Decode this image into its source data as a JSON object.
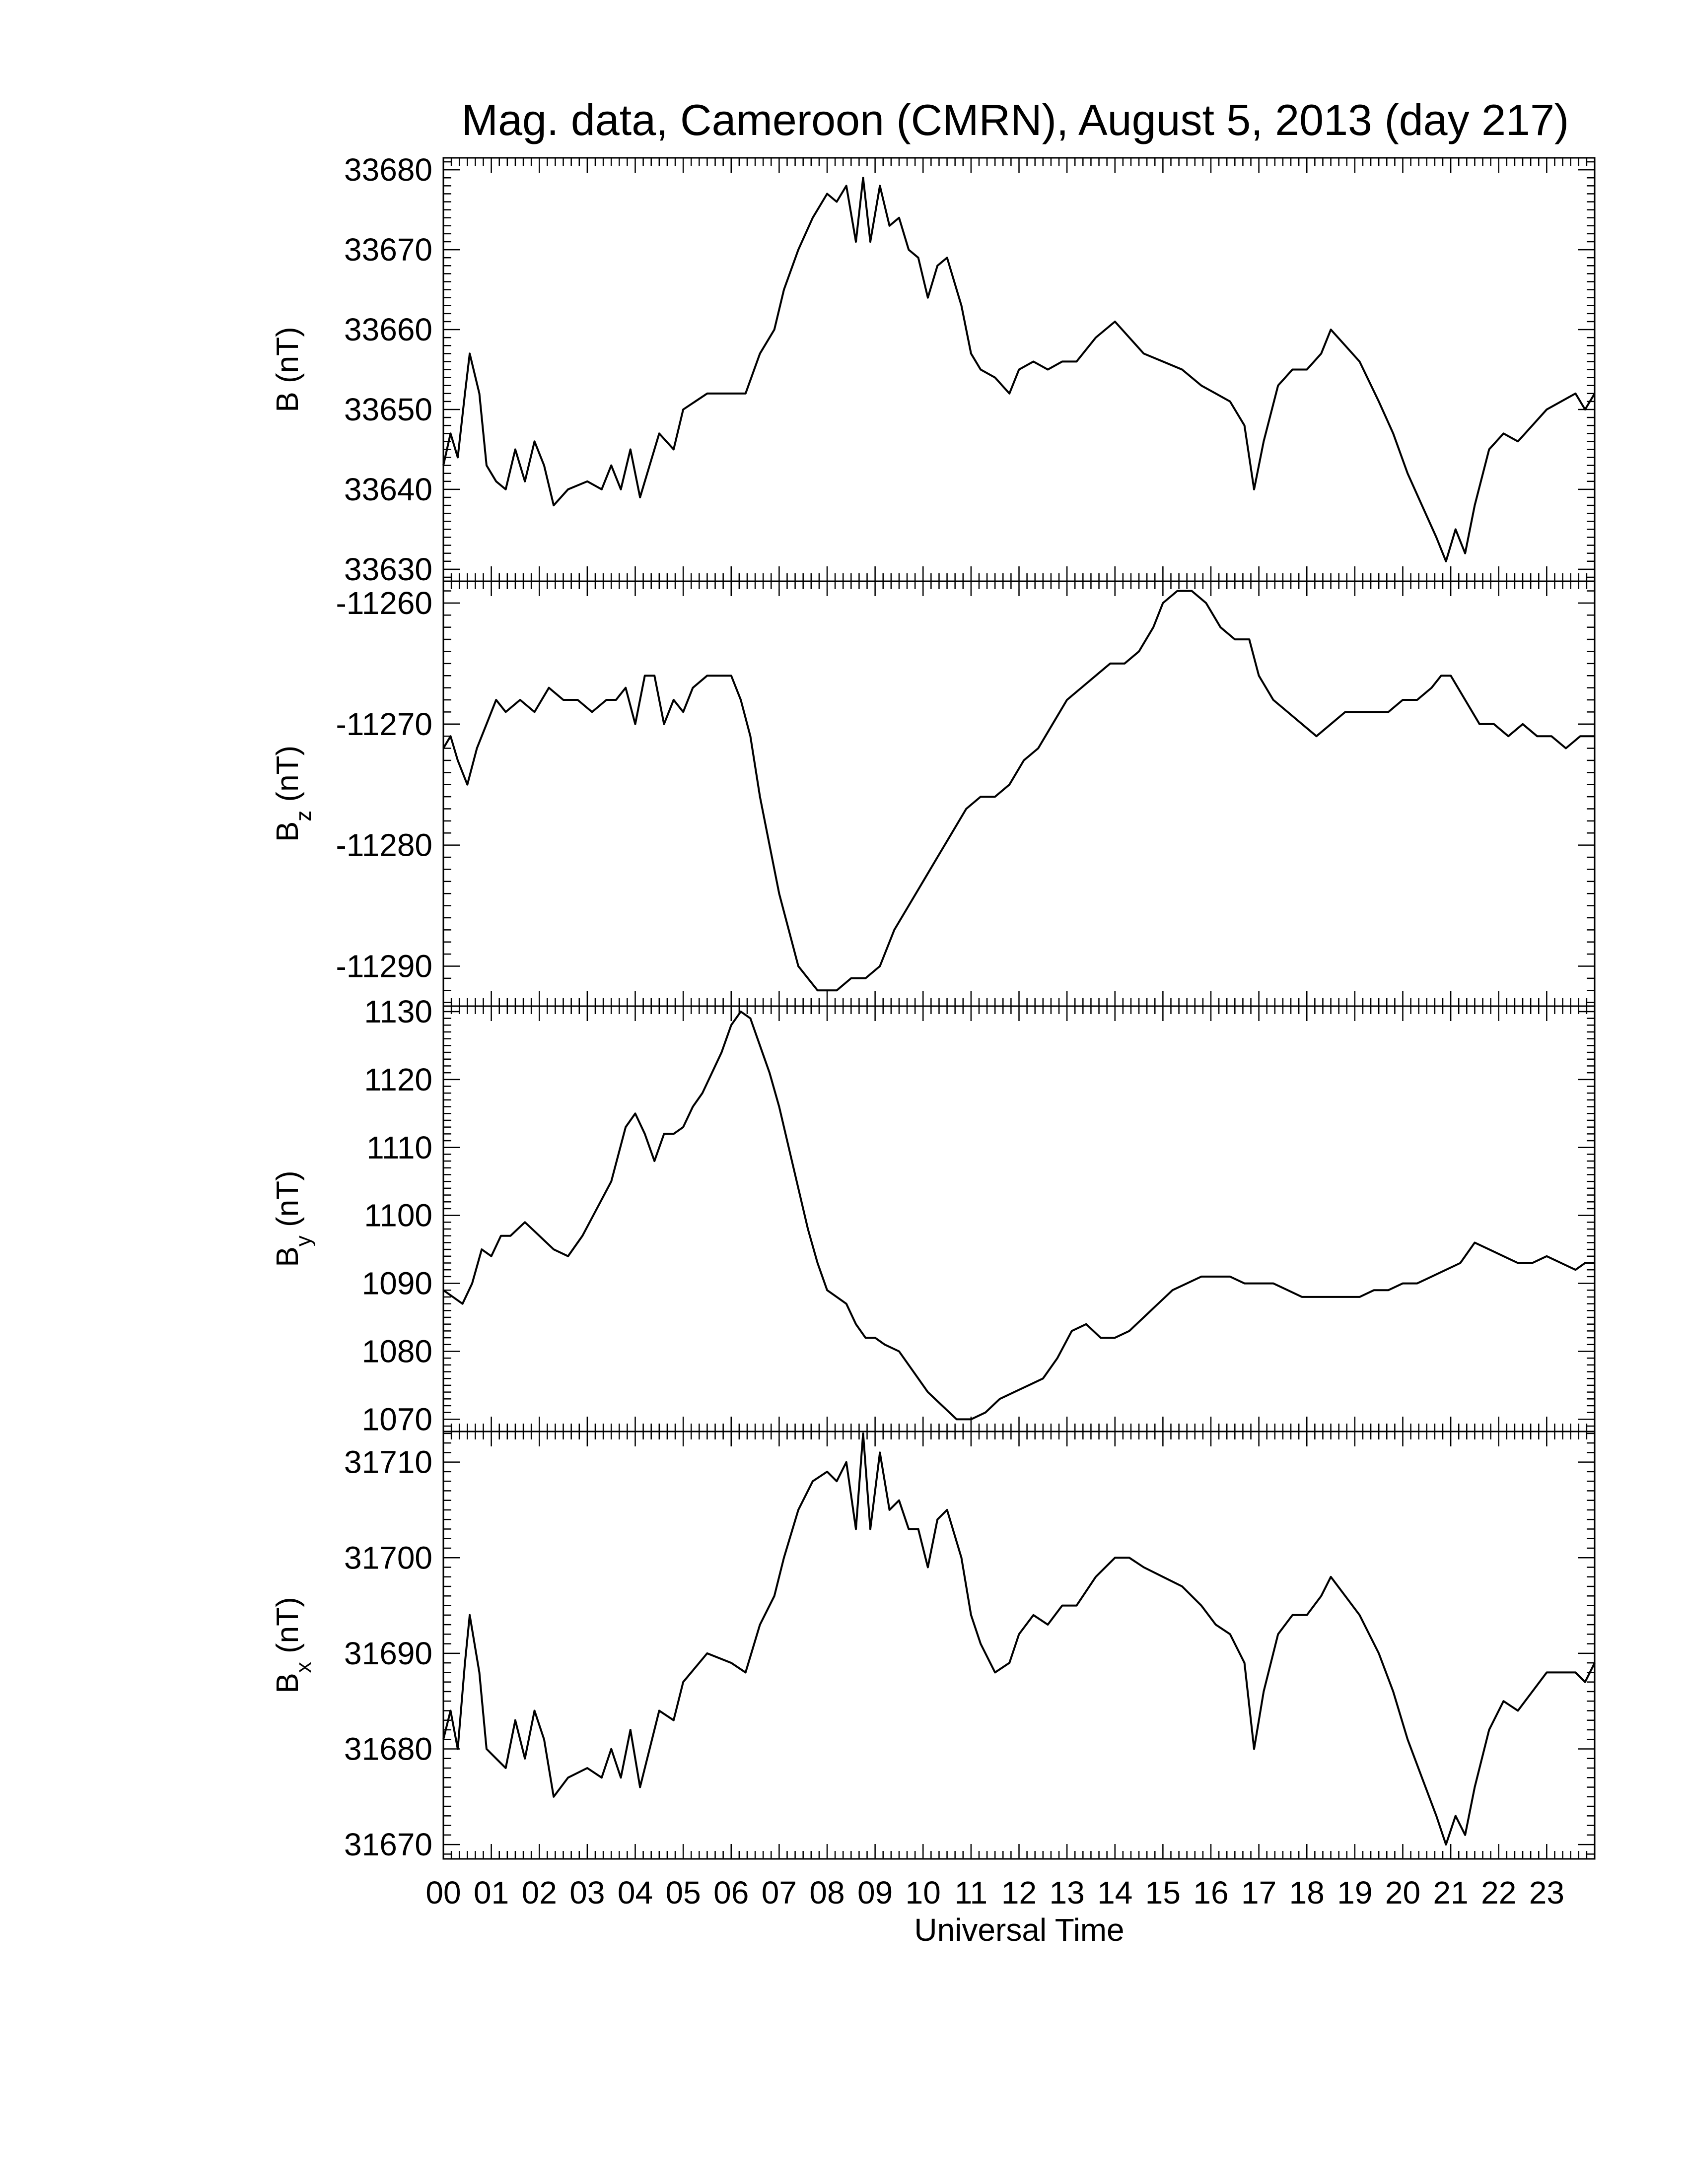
{
  "chart_data": {
    "type": "line",
    "title": "Mag. data, Cameroon (CMRN), August 5, 2013 (day 217)",
    "xlabel": "Universal Time",
    "xlim": [
      0,
      24
    ],
    "x_tick_labels": [
      "00",
      "01",
      "02",
      "03",
      "04",
      "05",
      "06",
      "07",
      "08",
      "09",
      "10",
      "11",
      "12",
      "13",
      "14",
      "15",
      "16",
      "17",
      "18",
      "19",
      "20",
      "21",
      "22",
      "23"
    ],
    "grid": false,
    "line_color": "#000000",
    "panels": [
      {
        "ylabel_main": "B",
        "ylabel_sub": "",
        "ylabel_unit": " (nT)",
        "ylim": [
          33628.5,
          33681.5
        ],
        "yticks": [
          33630,
          33640,
          33650,
          33660,
          33670,
          33680
        ],
        "ytick_labels": [
          "33630",
          "33640",
          "33650",
          "33660",
          "33670",
          "33680"
        ],
        "series": [
          {
            "x": [
              0,
              0.15,
              0.3,
              0.45,
              0.55,
              0.75,
              0.9,
              1.1,
              1.3,
              1.5,
              1.7,
              1.9,
              2.1,
              2.3,
              2.6,
              3.0,
              3.3,
              3.5,
              3.7,
              3.9,
              4.1,
              4.3,
              4.5,
              4.8,
              5.0,
              5.5,
              6.0,
              6.3,
              6.6,
              6.9,
              7.1,
              7.4,
              7.7,
              8.0,
              8.2,
              8.4,
              8.6,
              8.75,
              8.9,
              9.1,
              9.3,
              9.5,
              9.7,
              9.9,
              10.1,
              10.3,
              10.5,
              10.8,
              11.0,
              11.2,
              11.5,
              11.8,
              12.0,
              12.3,
              12.6,
              12.9,
              13.2,
              13.6,
              14.0,
              14.3,
              14.6,
              15.0,
              15.4,
              15.8,
              16.1,
              16.4,
              16.7,
              16.9,
              17.1,
              17.4,
              17.7,
              18.0,
              18.3,
              18.5,
              18.8,
              19.1,
              19.5,
              19.8,
              20.1,
              20.4,
              20.7,
              20.9,
              21.1,
              21.3,
              21.5,
              21.8,
              22.1,
              22.4,
              22.7,
              23.0,
              23.3,
              23.6,
              23.8,
              24.0
            ],
            "y": [
              33643,
              33647,
              33644,
              33652,
              33657,
              33652,
              33643,
              33641,
              33640,
              33645,
              33641,
              33646,
              33643,
              33638,
              33640,
              33641,
              33640,
              33643,
              33640,
              33645,
              33639,
              33643,
              33647,
              33645,
              33650,
              33652,
              33652,
              33652,
              33657,
              33660,
              33665,
              33670,
              33674,
              33677,
              33676,
              33678,
              33671,
              33679,
              33671,
              33678,
              33673,
              33674,
              33670,
              33669,
              33664,
              33668,
              33669,
              33663,
              33657,
              33655,
              33654,
              33652,
              33655,
              33656,
              33655,
              33656,
              33656,
              33659,
              33661,
              33659,
              33657,
              33656,
              33655,
              33653,
              33652,
              33651,
              33648,
              33640,
              33646,
              33653,
              33655,
              33655,
              33657,
              33660,
              33658,
              33656,
              33651,
              33647,
              33642,
              33638,
              33634,
              33631,
              33635,
              33632,
              33638,
              33645,
              33647,
              33646,
              33648,
              33650,
              33651,
              33652,
              33650,
              33652
            ]
          }
        ]
      },
      {
        "ylabel_main": "B",
        "ylabel_sub": "z",
        "ylabel_unit": " (nT)",
        "ylim": [
          -11293.3,
          -11258.2
        ],
        "yticks": [
          -11290,
          -11280,
          -11270,
          -11260
        ],
        "ytick_labels": [
          "-11290",
          "-11280",
          "-11270",
          "-11260"
        ],
        "series": [
          {
            "x": [
              0,
              0.15,
              0.3,
              0.5,
              0.7,
              0.9,
              1.1,
              1.3,
              1.6,
              1.9,
              2.2,
              2.5,
              2.8,
              3.1,
              3.4,
              3.6,
              3.8,
              4.0,
              4.2,
              4.4,
              4.6,
              4.8,
              5.0,
              5.2,
              5.5,
              5.8,
              6.0,
              6.2,
              6.4,
              6.6,
              6.8,
              7.0,
              7.2,
              7.4,
              7.6,
              7.8,
              8.0,
              8.2,
              8.5,
              8.8,
              9.1,
              9.4,
              9.7,
              10.0,
              10.3,
              10.6,
              10.9,
              11.2,
              11.5,
              11.8,
              12.1,
              12.4,
              12.7,
              13.0,
              13.3,
              13.6,
              13.9,
              14.2,
              14.5,
              14.8,
              15.0,
              15.3,
              15.6,
              15.9,
              16.2,
              16.5,
              16.8,
              17.0,
              17.3,
              17.6,
              17.9,
              18.2,
              18.5,
              18.8,
              19.1,
              19.4,
              19.7,
              20.0,
              20.3,
              20.6,
              20.8,
              21.0,
              21.3,
              21.6,
              21.9,
              22.2,
              22.5,
              22.8,
              23.1,
              23.4,
              23.7,
              24.0
            ],
            "y": [
              -11272,
              -11271,
              -11273,
              -11275,
              -11272,
              -11270,
              -11268,
              -11269,
              -11268,
              -11269,
              -11267,
              -11268,
              -11268,
              -11269,
              -11268,
              -11268,
              -11267,
              -11270,
              -11266,
              -11266,
              -11270,
              -11268,
              -11269,
              -11267,
              -11266,
              -11266,
              -11266,
              -11268,
              -11271,
              -11276,
              -11280,
              -11284,
              -11287,
              -11290,
              -11291,
              -11292,
              -11292,
              -11292,
              -11291,
              -11291,
              -11290,
              -11287,
              -11285,
              -11283,
              -11281,
              -11279,
              -11277,
              -11276,
              -11276,
              -11275,
              -11273,
              -11272,
              -11270,
              -11268,
              -11267,
              -11266,
              -11265,
              -11265,
              -11264,
              -11262,
              -11260,
              -11259,
              -11259,
              -11260,
              -11262,
              -11263,
              -11263,
              -11266,
              -11268,
              -11269,
              -11270,
              -11271,
              -11270,
              -11269,
              -11269,
              -11269,
              -11269,
              -11268,
              -11268,
              -11267,
              -11266,
              -11266,
              -11268,
              -11270,
              -11270,
              -11271,
              -11270,
              -11271,
              -11271,
              -11272,
              -11271,
              -11271
            ]
          }
        ]
      },
      {
        "ylabel_main": "B",
        "ylabel_sub": "y",
        "ylabel_unit": " (nT)",
        "ylim": [
          1068.2,
          1130.8
        ],
        "yticks": [
          1070,
          1080,
          1090,
          1100,
          1110,
          1120,
          1130
        ],
        "ytick_labels": [
          "1070",
          "1080",
          "1090",
          "1100",
          "1110",
          "1120",
          "1130"
        ],
        "series": [
          {
            "x": [
              0,
              0.2,
              0.4,
              0.6,
              0.8,
              1.0,
              1.2,
              1.4,
              1.7,
              2.0,
              2.3,
              2.6,
              2.9,
              3.2,
              3.5,
              3.8,
              4.0,
              4.2,
              4.4,
              4.6,
              4.8,
              5.0,
              5.2,
              5.4,
              5.6,
              5.8,
              6.0,
              6.2,
              6.4,
              6.6,
              6.8,
              7.0,
              7.2,
              7.4,
              7.6,
              7.8,
              8.0,
              8.2,
              8.4,
              8.6,
              8.8,
              9.0,
              9.2,
              9.5,
              9.8,
              10.1,
              10.4,
              10.7,
              11.0,
              11.3,
              11.6,
              11.9,
              12.2,
              12.5,
              12.8,
              13.1,
              13.4,
              13.7,
              14.0,
              14.3,
              14.6,
              14.9,
              15.2,
              15.5,
              15.8,
              16.1,
              16.4,
              16.7,
              17.0,
              17.3,
              17.6,
              17.9,
              18.2,
              18.5,
              18.8,
              19.1,
              19.4,
              19.7,
              20.0,
              20.3,
              20.6,
              20.9,
              21.2,
              21.5,
              21.8,
              22.1,
              22.4,
              22.7,
              23.0,
              23.3,
              23.6,
              23.8,
              24.0
            ],
            "y": [
              1089,
              1088,
              1087,
              1090,
              1095,
              1094,
              1097,
              1097,
              1099,
              1097,
              1095,
              1094,
              1097,
              1101,
              1105,
              1113,
              1115,
              1112,
              1108,
              1112,
              1112,
              1113,
              1116,
              1118,
              1121,
              1124,
              1128,
              1130,
              1129,
              1125,
              1121,
              1116,
              1110,
              1104,
              1098,
              1093,
              1089,
              1088,
              1087,
              1084,
              1082,
              1082,
              1081,
              1080,
              1077,
              1074,
              1072,
              1070,
              1070,
              1071,
              1073,
              1074,
              1075,
              1076,
              1079,
              1083,
              1084,
              1082,
              1082,
              1083,
              1085,
              1087,
              1089,
              1090,
              1091,
              1091,
              1091,
              1090,
              1090,
              1090,
              1089,
              1088,
              1088,
              1088,
              1088,
              1088,
              1089,
              1089,
              1090,
              1090,
              1091,
              1092,
              1093,
              1096,
              1095,
              1094,
              1093,
              1093,
              1094,
              1093,
              1092,
              1093,
              1093
            ]
          }
        ]
      },
      {
        "ylabel_main": "B",
        "ylabel_sub": "x",
        "ylabel_unit": " (nT)",
        "ylim": [
          31668.5,
          31713.2
        ],
        "yticks": [
          31670,
          31680,
          31690,
          31700,
          31710
        ],
        "ytick_labels": [
          "31670",
          "31680",
          "31690",
          "31700",
          "31710"
        ],
        "series": [
          {
            "x": [
              0,
              0.15,
              0.3,
              0.45,
              0.55,
              0.75,
              0.9,
              1.1,
              1.3,
              1.5,
              1.7,
              1.9,
              2.1,
              2.3,
              2.6,
              3.0,
              3.3,
              3.5,
              3.7,
              3.9,
              4.1,
              4.3,
              4.5,
              4.8,
              5.0,
              5.5,
              6.0,
              6.3,
              6.6,
              6.9,
              7.1,
              7.4,
              7.7,
              8.0,
              8.2,
              8.4,
              8.6,
              8.75,
              8.9,
              9.1,
              9.3,
              9.5,
              9.7,
              9.9,
              10.1,
              10.3,
              10.5,
              10.8,
              11.0,
              11.2,
              11.5,
              11.8,
              12.0,
              12.3,
              12.6,
              12.9,
              13.2,
              13.6,
              14.0,
              14.3,
              14.6,
              15.0,
              15.4,
              15.8,
              16.1,
              16.4,
              16.7,
              16.9,
              17.1,
              17.4,
              17.7,
              18.0,
              18.3,
              18.5,
              18.8,
              19.1,
              19.5,
              19.8,
              20.1,
              20.4,
              20.7,
              20.9,
              21.1,
              21.3,
              21.5,
              21.8,
              22.1,
              22.4,
              22.7,
              23.0,
              23.3,
              23.6,
              23.8,
              24.0
            ],
            "y": [
              31681,
              31684,
              31680,
              31689,
              31694,
              31688,
              31680,
              31679,
              31678,
              31683,
              31679,
              31684,
              31681,
              31675,
              31677,
              31678,
              31677,
              31680,
              31677,
              31682,
              31676,
              31680,
              31684,
              31683,
              31687,
              31690,
              31689,
              31688,
              31693,
              31696,
              31700,
              31705,
              31708,
              31709,
              31708,
              31710,
              31703,
              31713,
              31703,
              31711,
              31705,
              31706,
              31703,
              31703,
              31699,
              31704,
              31705,
              31700,
              31694,
              31691,
              31688,
              31689,
              31692,
              31694,
              31693,
              31695,
              31695,
              31698,
              31700,
              31700,
              31699,
              31698,
              31697,
              31695,
              31693,
              31692,
              31689,
              31680,
              31686,
              31692,
              31694,
              31694,
              31696,
              31698,
              31696,
              31694,
              31690,
              31686,
              31681,
              31677,
              31673,
              31670,
              31673,
              31671,
              31676,
              31682,
              31685,
              31684,
              31686,
              31688,
              31688,
              31688,
              31687,
              31689
            ]
          }
        ]
      }
    ]
  }
}
